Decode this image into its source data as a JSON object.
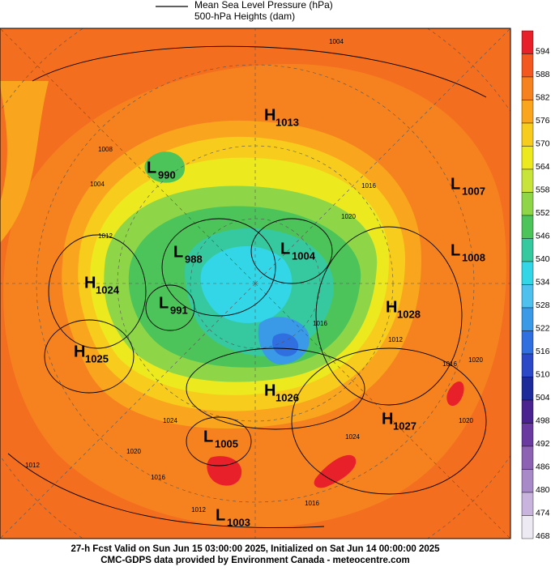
{
  "header": {
    "lines": [
      "Mean Sea Level Pressure (hPa)",
      "500-hPa Heights (dam)"
    ]
  },
  "centers": [
    {
      "kind": "H",
      "value": 1013
    },
    {
      "kind": "L",
      "value": 990
    },
    {
      "kind": "L",
      "value": 1007
    },
    {
      "kind": "L",
      "value": 988
    },
    {
      "kind": "L",
      "value": 1004
    },
    {
      "kind": "L",
      "value": 1008
    },
    {
      "kind": "H",
      "value": 1024
    },
    {
      "kind": "L",
      "value": 991
    },
    {
      "kind": "H",
      "value": 1028
    },
    {
      "kind": "H",
      "value": 1025
    },
    {
      "kind": "H",
      "value": 1026
    },
    {
      "kind": "H",
      "value": 1027
    },
    {
      "kind": "L",
      "value": 1005
    },
    {
      "kind": "L",
      "value": 1003
    }
  ],
  "isobar_labels": [
    1004,
    1008,
    1004,
    1012,
    1020,
    1016,
    1012,
    1016,
    1016,
    1020,
    1024,
    1020,
    1012,
    1016,
    1012,
    1016,
    1024,
    1020
  ],
  "colorbar": {
    "ticks": [
      594,
      588,
      582,
      576,
      570,
      564,
      558,
      552,
      546,
      540,
      534,
      528,
      522,
      516,
      510,
      504,
      498,
      492,
      486,
      480,
      474,
      468
    ],
    "colors": [
      "#e8202a",
      "#f2581f",
      "#f6821f",
      "#f9a51d",
      "#f8cc1c",
      "#ecea1e",
      "#c8e43a",
      "#8ed648",
      "#4cc45a",
      "#36c9a0",
      "#33d6e6",
      "#4fc1ef",
      "#3a9ae8",
      "#2f6fe0",
      "#2a48c8",
      "#1d2a99",
      "#4a2390",
      "#6a3aa0",
      "#8d62b5",
      "#a98ac8",
      "#c8b4dc",
      "#eeeaf4"
    ]
  },
  "footer": {
    "lines": [
      "27-h Fcst Valid on Sun Jun 15 03:00:00 2025, Initialized on Sat Jun 14 00:00:00 2025",
      "CMC-GDPS data provided by Environment Canada - meteocentre.com"
    ]
  }
}
